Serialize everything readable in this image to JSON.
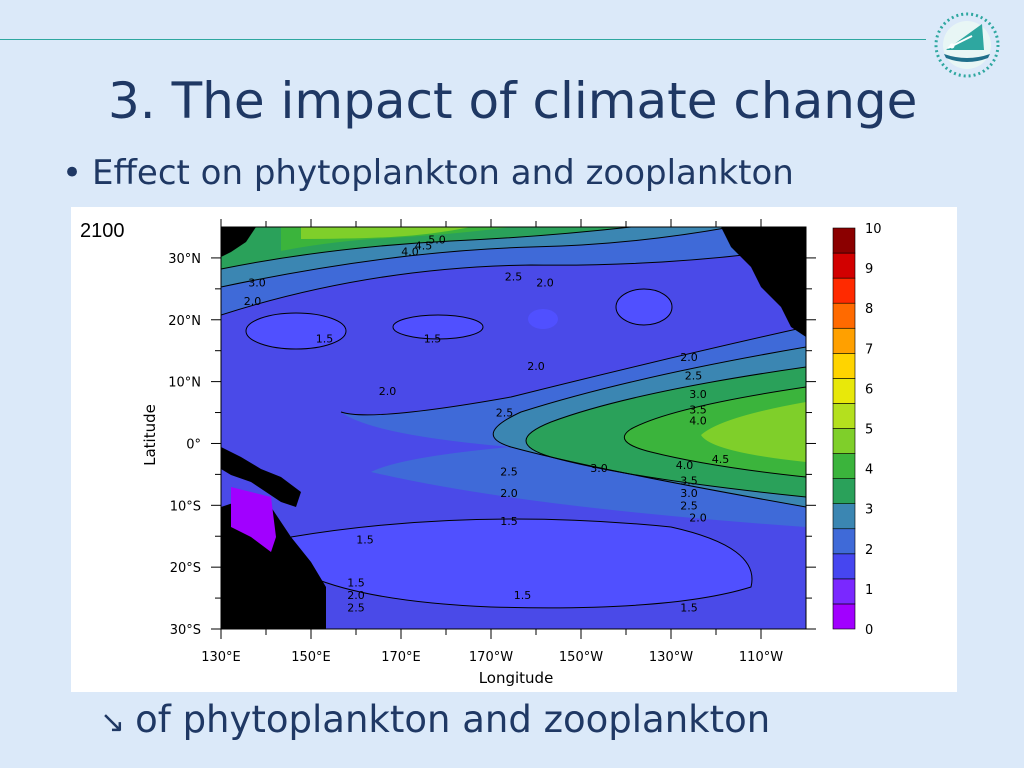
{
  "slide": {
    "title": "3. The impact of climate change",
    "bullet": "Effect on phytoplankton and zooplankton",
    "bottom_arrow": "↘",
    "bottom_text": "of phytoplankton and zooplankton",
    "logo_icon": "sailboat-logo-icon",
    "accent_color": "#2ea7a0",
    "text_color": "#1f3864"
  },
  "chart_data": {
    "type": "heatmap",
    "panel_label": "2100",
    "xlabel": "Longitude",
    "ylabel": "Latitude",
    "x_ticks": [
      "130°E",
      "150°E",
      "170°E",
      "170°W",
      "150°W",
      "130°W",
      "110°W"
    ],
    "y_ticks": [
      "30°N",
      "20°N",
      "10°N",
      "0°",
      "10°S",
      "20°S",
      "30°S"
    ],
    "xlim": [
      130,
      260
    ],
    "ylim": [
      -30,
      35
    ],
    "colorbar": {
      "levels": [
        0,
        1,
        2,
        3,
        4,
        5,
        6,
        7,
        8,
        9,
        10
      ],
      "colors": [
        "#a100ff",
        "#7a28ff",
        "#4646f0",
        "#3f6ad8",
        "#3b86b2",
        "#2aa15a",
        "#3bb43c",
        "#7fcf2a",
        "#b4e01e",
        "#e8e80a",
        "#ffd400",
        "#ffa000",
        "#ff6a00",
        "#ff2a00",
        "#d20000",
        "#8b0000"
      ]
    },
    "contour_labels": [
      {
        "text": "5.0",
        "lon": 178,
        "lat": 33
      },
      {
        "text": "4.5",
        "lon": 175,
        "lat": 32
      },
      {
        "text": "4.0",
        "lon": 172,
        "lat": 31
      },
      {
        "text": "2.5",
        "lon": 195,
        "lat": 27
      },
      {
        "text": "2.0",
        "lon": 202,
        "lat": 26
      },
      {
        "text": "3.0",
        "lon": 138,
        "lat": 26
      },
      {
        "text": "2.0",
        "lon": 137,
        "lat": 23
      },
      {
        "text": "1.5",
        "lon": 153,
        "lat": 17
      },
      {
        "text": "1.5",
        "lon": 177,
        "lat": 17
      },
      {
        "text": "2.0",
        "lon": 200,
        "lat": 12.5
      },
      {
        "text": "2.0",
        "lon": 234,
        "lat": 14
      },
      {
        "text": "2.5",
        "lon": 235,
        "lat": 11
      },
      {
        "text": "3.0",
        "lon": 236,
        "lat": 8
      },
      {
        "text": "3.5",
        "lon": 236,
        "lat": 5.5
      },
      {
        "text": "4.0",
        "lon": 236,
        "lat": 3.7
      },
      {
        "text": "2.0",
        "lon": 167,
        "lat": 8.5
      },
      {
        "text": "2.5",
        "lon": 193,
        "lat": 5
      },
      {
        "text": "4.0",
        "lon": 233,
        "lat": -3.5
      },
      {
        "text": "4.5",
        "lon": 241,
        "lat": -2.5
      },
      {
        "text": "3.0",
        "lon": 214,
        "lat": -4
      },
      {
        "text": "3.5",
        "lon": 234,
        "lat": -6
      },
      {
        "text": "3.0",
        "lon": 234,
        "lat": -8
      },
      {
        "text": "2.5",
        "lon": 194,
        "lat": -4.5
      },
      {
        "text": "2.5",
        "lon": 234,
        "lat": -10
      },
      {
        "text": "2.0",
        "lon": 194,
        "lat": -8
      },
      {
        "text": "2.0",
        "lon": 236,
        "lat": -12
      },
      {
        "text": "1.5",
        "lon": 194,
        "lat": -12.5
      },
      {
        "text": "1.5",
        "lon": 162,
        "lat": -15.5
      },
      {
        "text": "1.5",
        "lon": 160,
        "lat": -22.5
      },
      {
        "text": "2.0",
        "lon": 160,
        "lat": -24.5
      },
      {
        "text": "2.5",
        "lon": 160,
        "lat": -26.5
      },
      {
        "text": "1.5",
        "lon": 197,
        "lat": -24.5
      },
      {
        "text": "1.5",
        "lon": 234,
        "lat": -26.5
      }
    ]
  }
}
